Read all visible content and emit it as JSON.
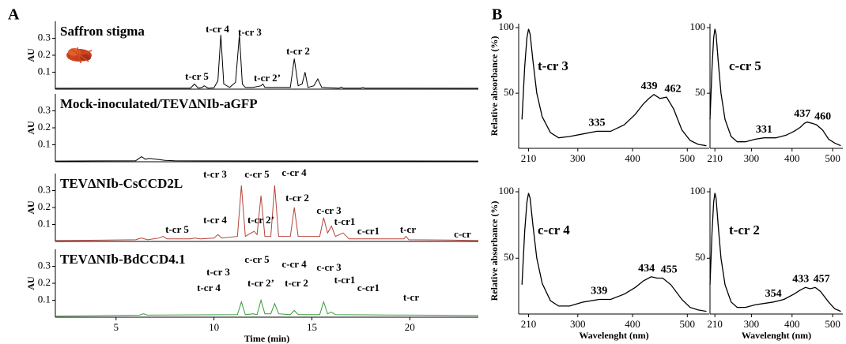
{
  "panel_labels": {
    "a": "A",
    "b": "B"
  },
  "chart_data": [
    {
      "type": "line",
      "title": "Saffron stigma",
      "ylabel": "AU",
      "color": "#000000",
      "x": [
        1.9,
        6,
        8.8,
        9.0,
        9.2,
        9.4,
        9.5,
        9.7,
        10.0,
        10.2,
        10.35,
        10.5,
        10.8,
        11.1,
        11.3,
        11.45,
        11.6,
        12.0,
        12.4,
        12.5,
        12.6,
        13.0,
        13.9,
        14.1,
        14.3,
        14.5,
        14.65,
        14.8,
        15.1,
        15.3,
        15.5,
        16.4,
        16.5,
        16.6,
        17.5,
        17.6,
        17.7,
        23.5
      ],
      "values": [
        0.005,
        0.006,
        0.006,
        0.03,
        0.006,
        0.01,
        0.02,
        0.006,
        0.008,
        0.05,
        0.32,
        0.03,
        0.01,
        0.04,
        0.32,
        0.03,
        0.01,
        0.01,
        0.02,
        0.03,
        0.01,
        0.01,
        0.01,
        0.18,
        0.02,
        0.03,
        0.1,
        0.01,
        0.02,
        0.06,
        0.01,
        0.006,
        0.012,
        0.006,
        0.006,
        0.01,
        0.006,
        0.005
      ],
      "xlim": [
        1.9,
        23.5
      ],
      "ylim": [
        0,
        0.4
      ],
      "yticks": [
        0.1,
        0.2,
        0.3
      ],
      "annotations": [
        "t-cr 4",
        "t-cr 3",
        "t-cr 5",
        "t-cr 2’",
        "t-cr 2"
      ]
    },
    {
      "type": "line",
      "title": "Mock-inoculated/TEVΔNIb-aGFP",
      "ylabel": "AU",
      "color": "#000000",
      "x": [
        1.9,
        6.0,
        6.3,
        6.5,
        6.7,
        7.5,
        8,
        10,
        23.5
      ],
      "values": [
        0.004,
        0.006,
        0.03,
        0.015,
        0.02,
        0.008,
        0.006,
        0.005,
        0.004
      ],
      "xlim": [
        1.9,
        23.5
      ],
      "ylim": [
        0,
        0.4
      ],
      "yticks": [
        0.1,
        0.2,
        0.3
      ]
    },
    {
      "type": "line",
      "title": "TEVΔNIb-CsCCD2L",
      "ylabel": "AU",
      "color": "#b5443a",
      "x": [
        1.9,
        6.0,
        6.3,
        6.6,
        7.2,
        7.4,
        7.6,
        8.8,
        9.0,
        9.3,
        10.0,
        10.2,
        10.4,
        11.2,
        11.4,
        11.6,
        11.9,
        12.05,
        12.2,
        12.4,
        12.6,
        12.9,
        13.1,
        13.3,
        13.9,
        14.1,
        14.3,
        15.4,
        15.6,
        15.8,
        16.0,
        16.2,
        16.6,
        16.9,
        19.7,
        19.8,
        19.95,
        22.0,
        23.5
      ],
      "values": [
        0.005,
        0.01,
        0.02,
        0.01,
        0.02,
        0.03,
        0.015,
        0.015,
        0.02,
        0.015,
        0.02,
        0.04,
        0.02,
        0.03,
        0.33,
        0.03,
        0.05,
        0.06,
        0.04,
        0.27,
        0.03,
        0.03,
        0.33,
        0.03,
        0.03,
        0.2,
        0.03,
        0.03,
        0.14,
        0.05,
        0.09,
        0.03,
        0.05,
        0.015,
        0.015,
        0.03,
        0.01,
        0.008,
        0.005
      ],
      "xlim": [
        1.9,
        23.5
      ],
      "ylim": [
        0,
        0.4
      ],
      "yticks": [
        0.1,
        0.2,
        0.3
      ],
      "annotations": [
        "t-cr 3",
        "c-cr 5",
        "c-cr 4",
        "t-cr 2",
        "c-cr 3",
        "t-cr1",
        "c-cr1",
        "t-cr 2’",
        "t-cr 4",
        "t-cr 5",
        "t-cr",
        "c-cr"
      ]
    },
    {
      "type": "line",
      "title": "TEVΔNIb-BdCCD4.1",
      "ylabel": "AU",
      "xlabel": "Time (min)",
      "color": "#3a9a3a",
      "x": [
        1.9,
        6.2,
        6.4,
        6.6,
        11.2,
        11.4,
        11.6,
        12.0,
        12.2,
        12.4,
        12.6,
        12.9,
        13.1,
        13.3,
        13.9,
        14.1,
        14.3,
        15.4,
        15.6,
        15.8,
        16.0,
        16.2,
        23.5
      ],
      "values": [
        0.006,
        0.012,
        0.02,
        0.012,
        0.015,
        0.09,
        0.015,
        0.02,
        0.015,
        0.1,
        0.02,
        0.02,
        0.08,
        0.02,
        0.015,
        0.04,
        0.015,
        0.015,
        0.09,
        0.02,
        0.03,
        0.015,
        0.01
      ],
      "xlim": [
        1.9,
        23.5
      ],
      "xticks": [
        5,
        10,
        15,
        20
      ],
      "ylim": [
        0,
        0.4
      ],
      "yticks": [
        0.1,
        0.2,
        0.3
      ],
      "annotations": [
        "c-cr 5",
        "t-cr 3",
        "c-cr 4",
        "c-cr 3",
        "t-cr1",
        "t-cr 2’",
        "t-cr 2",
        "t-cr 4",
        "c-cr1",
        "t-cr"
      ]
    },
    {
      "type": "spectrum",
      "title": "t-cr 3",
      "ylabel": "Relative absorbance (%)",
      "color": "#000000",
      "x": [
        198,
        203,
        207,
        210,
        213,
        218,
        225,
        235,
        250,
        265,
        285,
        310,
        335,
        360,
        385,
        405,
        420,
        430,
        439,
        450,
        462,
        475,
        490,
        505,
        520,
        535
      ],
      "values": [
        30,
        70,
        92,
        99,
        95,
        75,
        50,
        32,
        20,
        16,
        17,
        19,
        21,
        21,
        26,
        34,
        42,
        46,
        49,
        46,
        47,
        38,
        22,
        14,
        11,
        10
      ],
      "xlim": [
        192,
        540
      ],
      "xticks": [
        210,
        300,
        400,
        500
      ],
      "ylim": [
        8,
        103
      ],
      "yticks": [
        50,
        100
      ],
      "peaks": [
        335,
        439,
        462
      ]
    },
    {
      "type": "spectrum",
      "title": "c-cr 5",
      "color": "#000000",
      "x": [
        198,
        203,
        207,
        210,
        213,
        218,
        225,
        235,
        250,
        265,
        285,
        310,
        331,
        360,
        385,
        405,
        420,
        430,
        437,
        450,
        460,
        475,
        490,
        505,
        520
      ],
      "values": [
        30,
        70,
        92,
        99,
        95,
        75,
        50,
        30,
        17,
        13,
        13,
        15,
        16,
        16,
        18,
        21,
        24,
        27,
        28,
        27,
        26,
        22,
        15,
        12,
        10
      ],
      "xlim": [
        198,
        525
      ],
      "xticks": [
        210,
        300,
        400,
        500
      ],
      "ylim": [
        8,
        103
      ],
      "yticks": [
        50,
        100
      ],
      "peaks": [
        331,
        437,
        460
      ]
    },
    {
      "type": "spectrum",
      "title": "c-cr 4",
      "ylabel": "Relative absorbance (%)",
      "xlabel": "Wavelenght (nm)",
      "color": "#000000",
      "x": [
        198,
        203,
        207,
        210,
        213,
        218,
        225,
        235,
        250,
        265,
        285,
        310,
        339,
        360,
        385,
        405,
        420,
        434,
        445,
        455,
        470,
        490,
        505,
        520,
        535
      ],
      "values": [
        30,
        70,
        92,
        99,
        95,
        75,
        50,
        31,
        18,
        14,
        14,
        17,
        19,
        19,
        23,
        28,
        33,
        36,
        35,
        35,
        30,
        19,
        13,
        11,
        10
      ],
      "xlim": [
        192,
        540
      ],
      "xticks": [
        210,
        300,
        400,
        500
      ],
      "ylim": [
        8,
        103
      ],
      "yticks": [
        50,
        100
      ],
      "peaks": [
        339,
        434,
        455
      ]
    },
    {
      "type": "spectrum",
      "title": "t-cr 2",
      "xlabel": "Wavelenght (nm)",
      "color": "#000000",
      "x": [
        198,
        203,
        207,
        210,
        213,
        218,
        225,
        235,
        250,
        265,
        285,
        310,
        354,
        380,
        405,
        420,
        433,
        445,
        457,
        470,
        490,
        505,
        520
      ],
      "values": [
        30,
        70,
        92,
        99,
        95,
        75,
        50,
        30,
        17,
        13,
        13,
        15,
        17,
        19,
        23,
        26,
        28,
        27,
        28,
        25,
        17,
        12,
        10
      ],
      "xlim": [
        198,
        525
      ],
      "xticks": [
        210,
        300,
        400,
        500
      ],
      "ylim": [
        8,
        103
      ],
      "yticks": [
        50,
        100
      ],
      "peaks": [
        354,
        433,
        457
      ]
    }
  ]
}
